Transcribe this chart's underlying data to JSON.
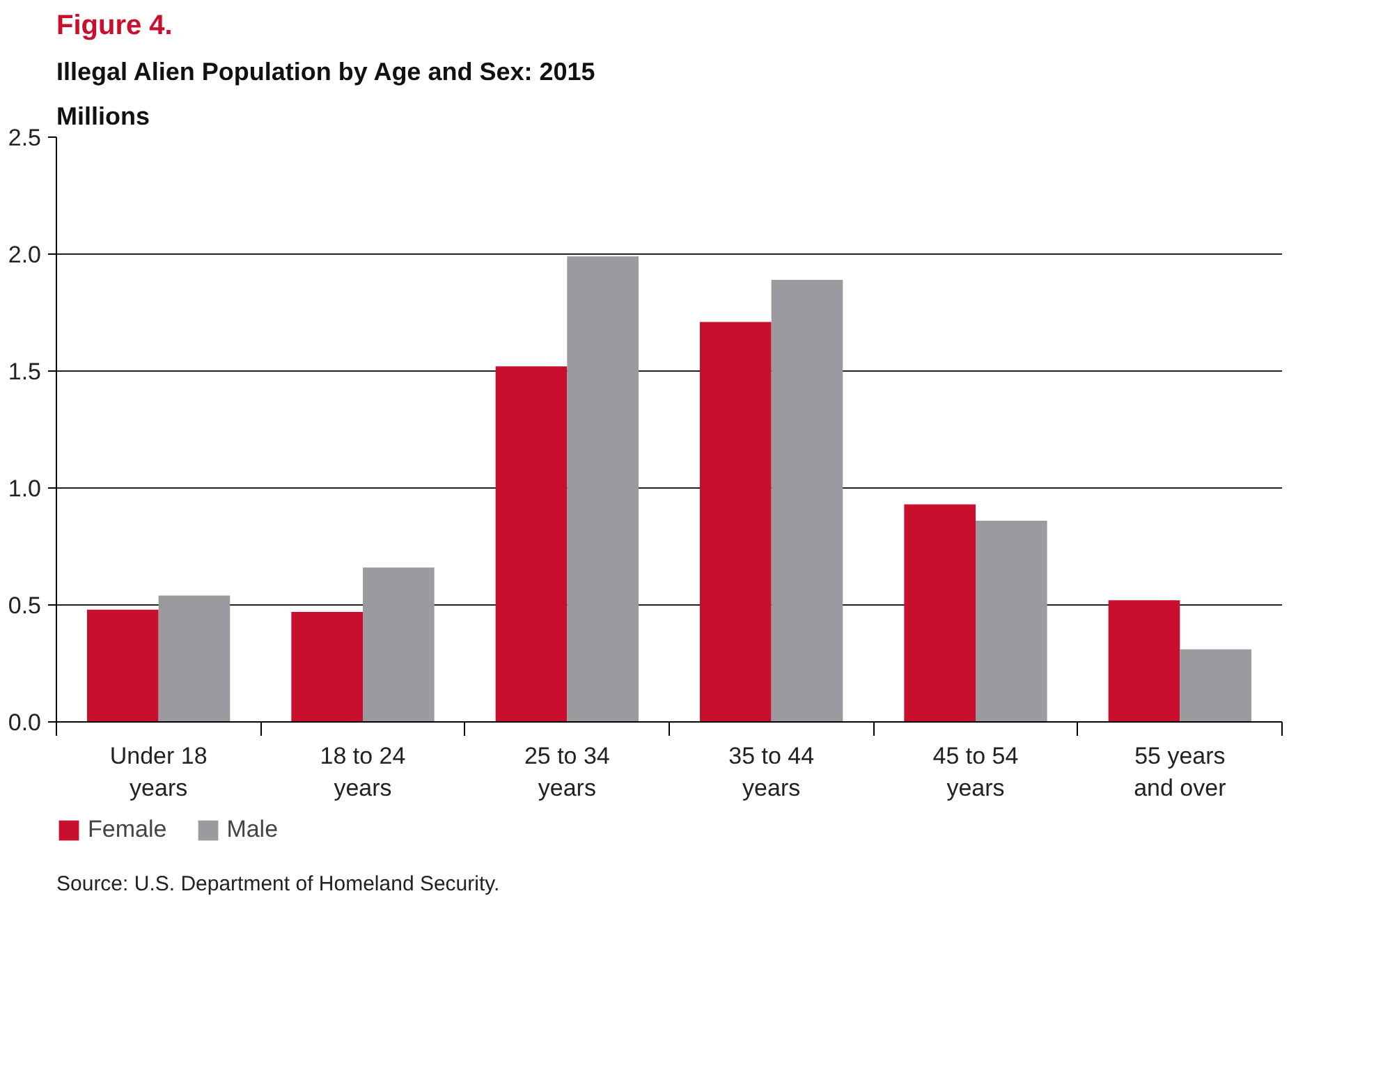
{
  "chart_data": {
    "type": "bar",
    "title": "Figure 4.",
    "subtitle": "Illegal Alien Population by Age and Sex: 2015",
    "ylabel": "Millions",
    "categories": [
      "Under 18\nyears",
      "18 to 24\nyears",
      "25 to 34\nyears",
      "35 to 44\nyears",
      "45 to 54\nyears",
      "55 years\nand over"
    ],
    "series": [
      {
        "name": "Female",
        "color": "#c8102e",
        "values": [
          0.48,
          0.47,
          1.52,
          1.71,
          0.93,
          0.52
        ]
      },
      {
        "name": "Male",
        "color": "#9b9a9f",
        "values": [
          0.54,
          0.66,
          1.99,
          1.89,
          0.86,
          0.31
        ]
      }
    ],
    "ylim": [
      0,
      2.5
    ],
    "yticks": [
      {
        "value": 0,
        "label": "0.0"
      },
      {
        "value": 0.5,
        "label": "0.5"
      },
      {
        "value": 1,
        "label": "1.0"
      },
      {
        "value": 1.5,
        "label": "1.5"
      },
      {
        "value": 2,
        "label": "2.0"
      },
      {
        "value": 2.5,
        "label": "2.5"
      }
    ],
    "grid": "y",
    "legend": "bottom left",
    "annotations": [
      "Source: U.S. Department of Homeland Security."
    ]
  }
}
